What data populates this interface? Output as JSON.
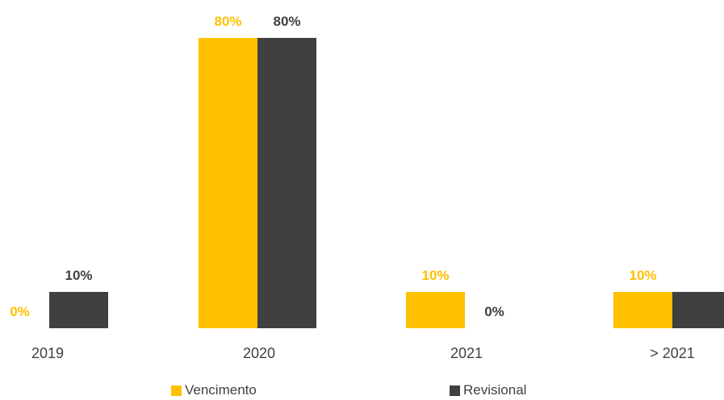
{
  "chart_data": {
    "type": "bar",
    "categories": [
      "2019",
      "2020",
      "2021",
      "> 2021"
    ],
    "series": [
      {
        "name": "Vencimento",
        "color": "#FFC000",
        "values": [
          0,
          80,
          10,
          10
        ],
        "labels": [
          "0%",
          "80%",
          "10%",
          "10%"
        ]
      },
      {
        "name": "Revisional",
        "color": "#404040",
        "values": [
          10,
          80,
          0,
          10
        ],
        "labels": [
          "10%",
          "80%",
          "0%",
          ""
        ]
      }
    ],
    "unit": "%",
    "ylim": [
      0,
      80
    ],
    "grid": false,
    "legend_position": "bottom"
  }
}
